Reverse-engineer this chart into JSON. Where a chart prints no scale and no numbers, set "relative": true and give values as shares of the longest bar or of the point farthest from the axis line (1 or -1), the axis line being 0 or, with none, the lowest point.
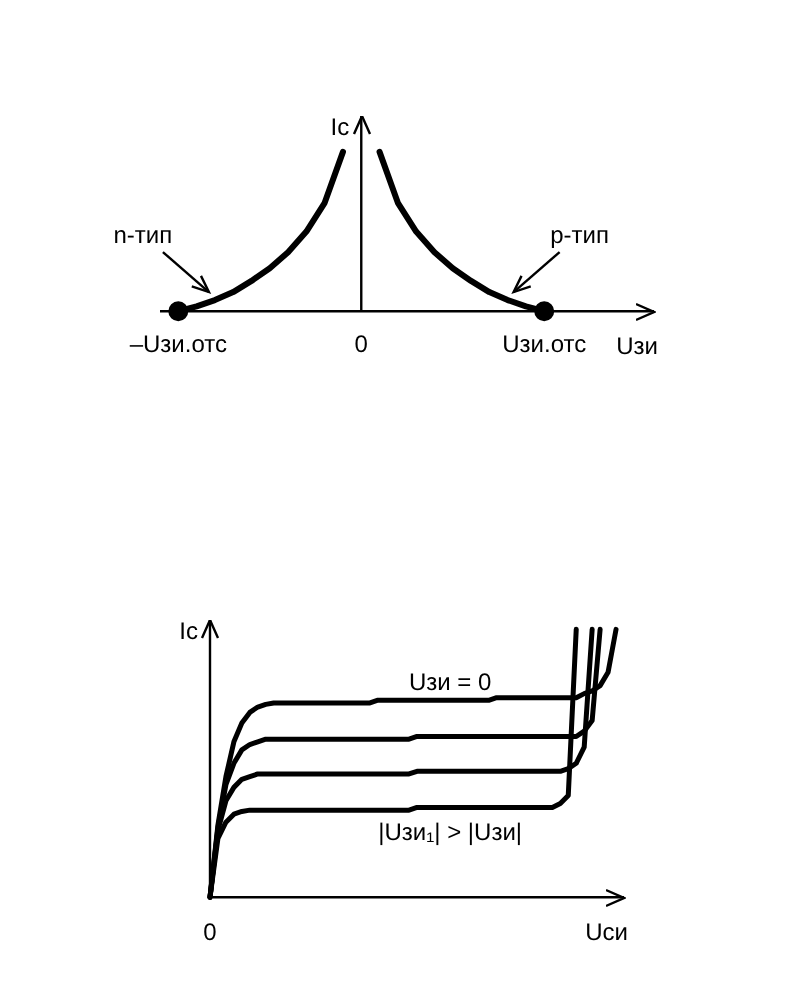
{
  "chart_data": [
    {
      "type": "line",
      "relative": true,
      "xlabel": "Uзи",
      "ylabel": "Iс",
      "categories": [
        null,
        "–Uзи.отс",
        null,
        null,
        null,
        null,
        null,
        null,
        null,
        null,
        null,
        "0",
        null,
        null,
        null,
        null,
        null,
        null,
        null,
        null,
        null,
        "Uзи.отс",
        null,
        null,
        null,
        null,
        null,
        null
      ],
      "marker": "none",
      "series": [
        {
          "name": "n-тип",
          "color": "#000000",
          "values": [
            null,
            0,
            0.03,
            0.07,
            0.12,
            0.19,
            0.27,
            0.37,
            0.5,
            0.68,
            1,
            null,
            null,
            null,
            null,
            null,
            null,
            null,
            null,
            null,
            null,
            null,
            null,
            null,
            null,
            null,
            null,
            null
          ]
        },
        {
          "name": "p-тип",
          "color": "#000000",
          "values": [
            null,
            null,
            null,
            null,
            null,
            null,
            null,
            null,
            null,
            null,
            null,
            null,
            1,
            0.68,
            0.5,
            0.37,
            0.27,
            0.19,
            0.12,
            0.07,
            0.03,
            0,
            null,
            null,
            null,
            null,
            null,
            null
          ]
        },
        {
          "type": "scatter",
          "marker": "circle",
          "color": "#000000",
          "values": [
            null,
            0,
            null,
            null,
            null,
            null,
            null,
            null,
            null,
            null,
            null,
            null,
            null,
            null,
            null,
            null,
            null,
            null,
            null,
            null,
            null,
            0,
            null,
            null,
            null,
            null,
            null,
            null
          ]
        }
      ]
    },
    {
      "type": "line",
      "relative": true,
      "xlabel": "Uси",
      "ylabel": "Iс",
      "categories": [
        null,
        null,
        null,
        null,
        null,
        null,
        null,
        null,
        null,
        null,
        null,
        null,
        null,
        null,
        null,
        null,
        null,
        null,
        null,
        null,
        null,
        null,
        null,
        null,
        null,
        null,
        null,
        null,
        null,
        null,
        null,
        null,
        null,
        null,
        null,
        null,
        null,
        null,
        null,
        null,
        null,
        null,
        null,
        null,
        null,
        null,
        null,
        null,
        null,
        null,
        null,
        null,
        null
      ],
      "marker": "none",
      "annotations": [
        "0",
        "Uзи = 0",
        "|Uзи₁| > |Uзи|"
      ],
      "series": [
        {
          "color": "#000000",
          "values": [
            0,
            0.27,
            0.45,
            0.58,
            0.65,
            0.69,
            0.71,
            0.72,
            0.725,
            0.725,
            0.725,
            0.725,
            0.725,
            0.725,
            0.725,
            0.725,
            0.725,
            0.725,
            0.725,
            0.725,
            0.725,
            0.735,
            0.735,
            0.735,
            0.735,
            0.735,
            0.735,
            0.735,
            0.735,
            0.735,
            0.735,
            0.735,
            0.735,
            0.735,
            0.735,
            0.735,
            0.745,
            0.745,
            0.745,
            0.745,
            0.745,
            0.745,
            0.745,
            0.745,
            0.745,
            0.745,
            0.745,
            0.76,
            0.77,
            0.79,
            0.84,
            1,
            null
          ]
        },
        {
          "color": "#000000",
          "values": [
            0,
            0.26,
            0.42,
            0.5,
            0.55,
            0.57,
            0.58,
            0.59,
            0.59,
            0.59,
            0.59,
            0.59,
            0.59,
            0.59,
            0.59,
            0.59,
            0.59,
            0.59,
            0.59,
            0.59,
            0.59,
            0.59,
            0.59,
            0.59,
            0.59,
            0.59,
            0.6,
            0.6,
            0.6,
            0.6,
            0.6,
            0.6,
            0.6,
            0.6,
            0.6,
            0.6,
            0.6,
            0.6,
            0.6,
            0.6,
            0.6,
            0.6,
            0.6,
            0.6,
            0.6,
            0.6,
            0.6,
            0.62,
            0.66,
            1,
            null,
            null,
            null
          ]
        },
        {
          "color": "#000000",
          "values": [
            0,
            0.25,
            0.36,
            0.41,
            0.44,
            0.45,
            0.46,
            0.46,
            0.46,
            0.46,
            0.46,
            0.46,
            0.46,
            0.46,
            0.46,
            0.46,
            0.46,
            0.46,
            0.46,
            0.46,
            0.46,
            0.46,
            0.46,
            0.46,
            0.46,
            0.46,
            0.47,
            0.47,
            0.47,
            0.47,
            0.47,
            0.47,
            0.47,
            0.47,
            0.47,
            0.47,
            0.47,
            0.47,
            0.47,
            0.47,
            0.47,
            0.47,
            0.47,
            0.47,
            0.47,
            0.48,
            0.5,
            0.56,
            1,
            null,
            null,
            null,
            null
          ]
        },
        {
          "color": "#000000",
          "values": [
            0,
            0.22,
            0.28,
            0.31,
            0.32,
            0.325,
            0.325,
            0.325,
            0.325,
            0.325,
            0.325,
            0.325,
            0.325,
            0.325,
            0.325,
            0.325,
            0.325,
            0.325,
            0.325,
            0.325,
            0.325,
            0.325,
            0.325,
            0.325,
            0.325,
            0.325,
            0.335,
            0.335,
            0.335,
            0.335,
            0.335,
            0.335,
            0.335,
            0.335,
            0.335,
            0.335,
            0.335,
            0.335,
            0.335,
            0.335,
            0.335,
            0.335,
            0.335,
            0.335,
            0.35,
            0.38,
            1,
            null,
            null,
            null,
            null,
            null,
            null
          ]
        }
      ]
    }
  ]
}
